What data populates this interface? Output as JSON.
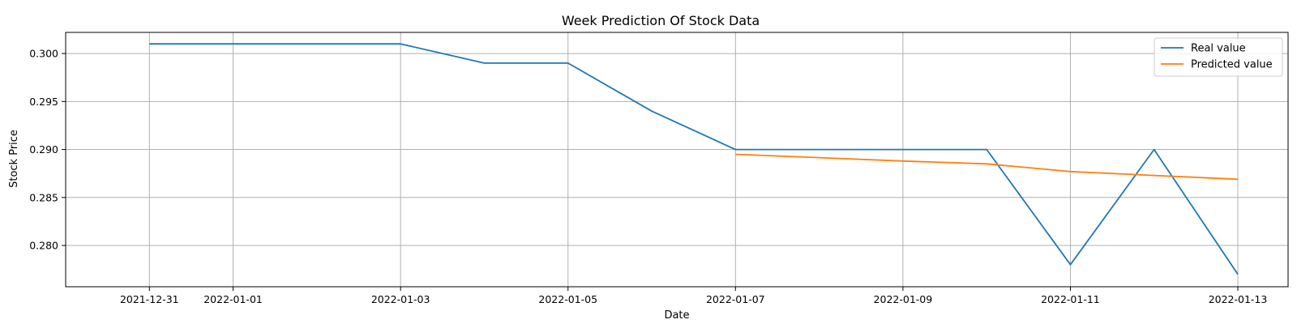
{
  "chart_data": {
    "type": "line",
    "title": "Week Prediction Of Stock Data",
    "xlabel": "Date",
    "ylabel": "Stock Price",
    "x_ticks": [
      "2021-12-31",
      "2022-01-01",
      "2022-01-03",
      "2022-01-05",
      "2022-01-07",
      "2022-01-09",
      "2022-01-11",
      "2022-01-13"
    ],
    "y_ticks": [
      "0.280",
      "0.285",
      "0.290",
      "0.295",
      "0.300"
    ],
    "xlim": [
      "2021-12-30",
      "2022-01-13"
    ],
    "ylim": [
      0.2757,
      0.3022
    ],
    "grid": true,
    "legend_position": "top-right",
    "series": [
      {
        "name": "Real value",
        "color": "#1f77b4",
        "points": [
          [
            "2021-12-31",
            0.301
          ],
          [
            "2022-01-03",
            0.301
          ],
          [
            "2022-01-04",
            0.299
          ],
          [
            "2022-01-05",
            0.299
          ],
          [
            "2022-01-06",
            0.294
          ],
          [
            "2022-01-07",
            0.29
          ],
          [
            "2022-01-10",
            0.29
          ],
          [
            "2022-01-11",
            0.278
          ],
          [
            "2022-01-12",
            0.29
          ],
          [
            "2022-01-13",
            0.277
          ]
        ]
      },
      {
        "name": "Predicted value",
        "color": "#ff7f0e",
        "points": [
          [
            "2022-01-07",
            0.2895
          ],
          [
            "2022-01-09",
            0.2888
          ],
          [
            "2022-01-10",
            0.2885
          ],
          [
            "2022-01-11",
            0.2877
          ],
          [
            "2022-01-12",
            0.2873
          ],
          [
            "2022-01-13",
            0.2869
          ]
        ]
      }
    ]
  }
}
